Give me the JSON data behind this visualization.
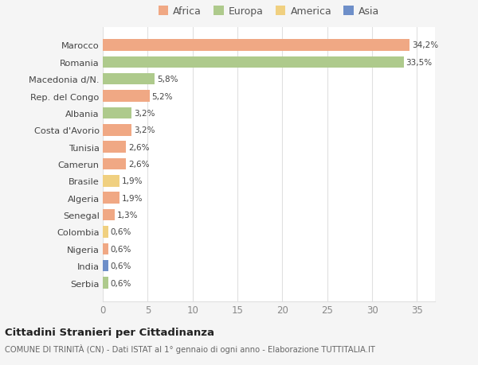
{
  "countries": [
    "Marocco",
    "Romania",
    "Macedonia d/N.",
    "Rep. del Congo",
    "Albania",
    "Costa d'Avorio",
    "Tunisia",
    "Camerun",
    "Brasile",
    "Algeria",
    "Senegal",
    "Colombia",
    "Nigeria",
    "India",
    "Serbia"
  ],
  "values": [
    34.2,
    33.5,
    5.8,
    5.2,
    3.2,
    3.2,
    2.6,
    2.6,
    1.9,
    1.9,
    1.3,
    0.6,
    0.6,
    0.6,
    0.6
  ],
  "labels": [
    "34,2%",
    "33,5%",
    "5,8%",
    "5,2%",
    "3,2%",
    "3,2%",
    "2,6%",
    "2,6%",
    "1,9%",
    "1,9%",
    "1,3%",
    "0,6%",
    "0,6%",
    "0,6%",
    "0,6%"
  ],
  "continents": [
    "Africa",
    "Europa",
    "Europa",
    "Africa",
    "Europa",
    "Africa",
    "Africa",
    "Africa",
    "America",
    "Africa",
    "Africa",
    "America",
    "Africa",
    "Asia",
    "Europa"
  ],
  "continent_colors": {
    "Africa": "#F0A884",
    "Europa": "#AECA8C",
    "America": "#F0D080",
    "Asia": "#6E8FC9"
  },
  "legend_order": [
    "Africa",
    "Europa",
    "America",
    "Asia"
  ],
  "title": "Cittadini Stranieri per Cittadinanza",
  "subtitle": "COMUNE DI TRINITÀ (CN) - Dati ISTAT al 1° gennaio di ogni anno - Elaborazione TUTTITALIA.IT",
  "xlim": [
    0,
    37
  ],
  "xticks": [
    0,
    5,
    10,
    15,
    20,
    25,
    30,
    35
  ],
  "background_color": "#f5f5f5",
  "plot_background": "#ffffff",
  "grid_color": "#e0e0e0"
}
